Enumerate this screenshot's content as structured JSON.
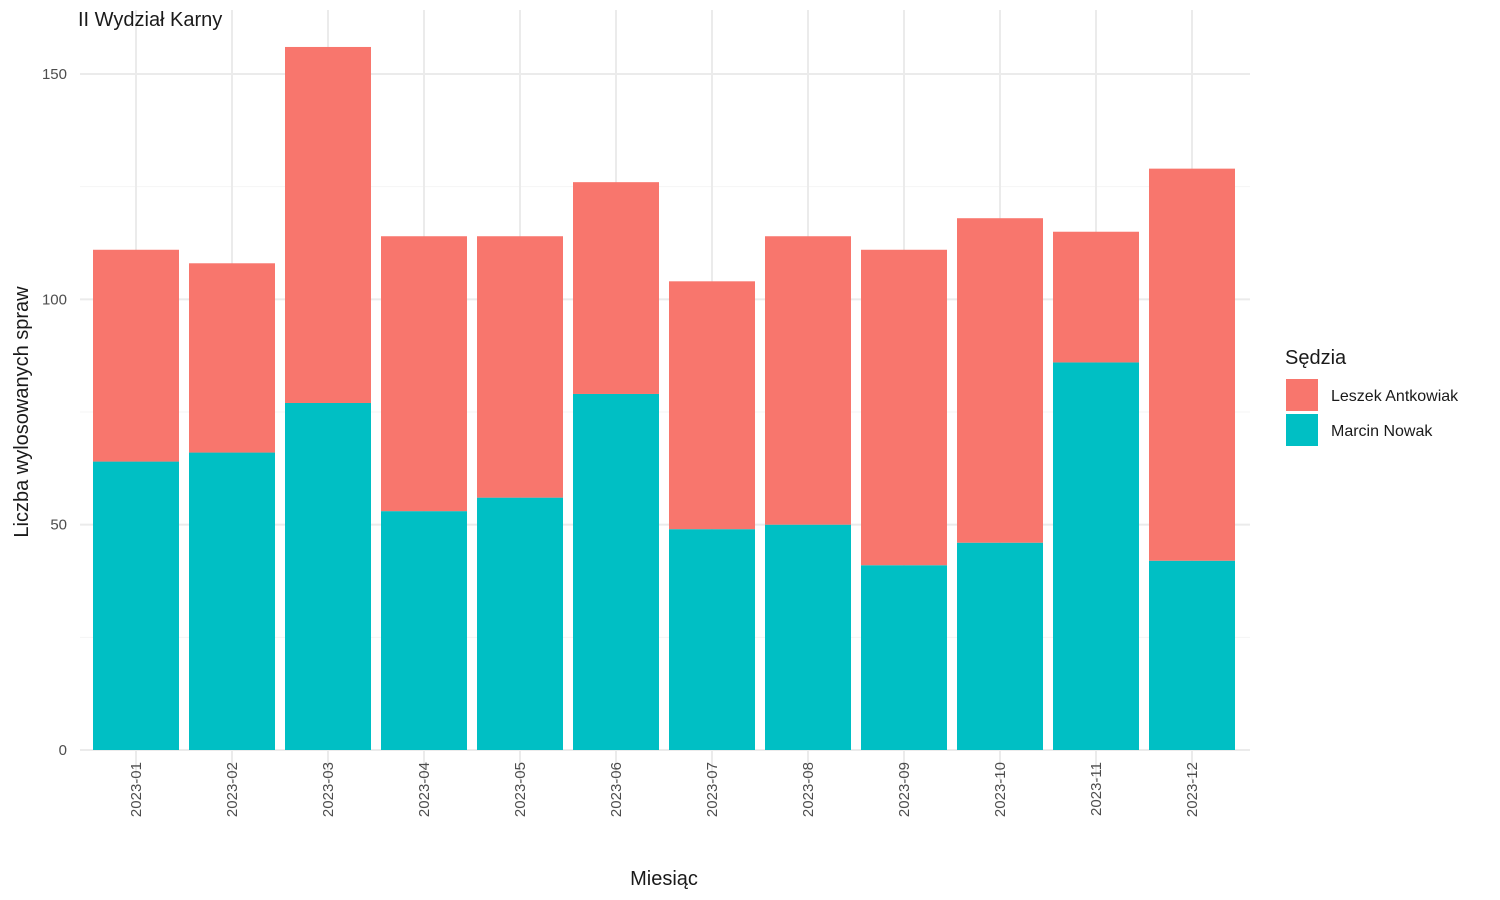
{
  "chart_data": {
    "type": "bar",
    "stacked": true,
    "title": "II Wydział Karny",
    "xlabel": "Miesiąc",
    "ylabel": "Liczba wylosowanych spraw",
    "ylim": [
      0,
      162
    ],
    "yticks": [
      "0",
      "50",
      "100",
      "150"
    ],
    "grid": true,
    "legend_position": "right",
    "legend_title": "Sędzia",
    "categories": [
      "2023-01",
      "2023-02",
      "2023-03",
      "2023-04",
      "2023-05",
      "2023-06",
      "2023-07",
      "2023-08",
      "2023-09",
      "2023-10",
      "2023-11",
      "2023-12"
    ],
    "series": [
      {
        "name": "Marcin Nowak",
        "color": "#00BFC4",
        "values": [
          64,
          66,
          77,
          53,
          56,
          79,
          49,
          50,
          41,
          46,
          86,
          42
        ]
      },
      {
        "name": "Leszek Antkowiak",
        "color": "#F8766D",
        "values": [
          47,
          42,
          79,
          61,
          58,
          47,
          55,
          64,
          70,
          72,
          29,
          87
        ]
      }
    ],
    "legend_order": [
      "Leszek Antkowiak",
      "Marcin Nowak"
    ]
  }
}
